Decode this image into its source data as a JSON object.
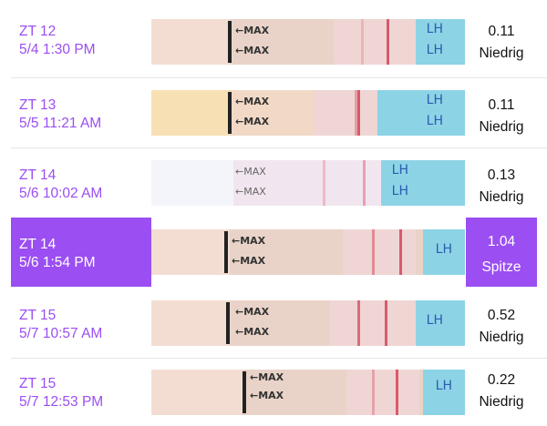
{
  "rows": [
    {
      "time": "ZT 12",
      "date": "5/4 1:30 PM",
      "value": "0.11",
      "level": "Niedrig",
      "selected": false
    },
    {
      "time": "ZT 13",
      "date": "5/5 11:21 AM",
      "value": "0.11",
      "level": "Niedrig",
      "selected": false
    },
    {
      "time": "ZT 14",
      "date": "5/6 10:02 AM",
      "value": "0.13",
      "level": "Niedrig",
      "selected": false
    },
    {
      "time": "ZT 14",
      "date": "5/6 1:54 PM",
      "value": "1.04",
      "level": "Spitze",
      "selected": true
    },
    {
      "time": "ZT 15",
      "date": "5/7 10:57 AM",
      "value": "0.52",
      "level": "Niedrig",
      "selected": false
    },
    {
      "time": "ZT 15",
      "date": "5/7 12:53 PM",
      "value": "0.22",
      "level": "Niedrig",
      "selected": false
    }
  ],
  "strip": {
    "max_label": "←MAX",
    "brand_label": "LH"
  },
  "colors": {
    "accent": "#9b4ef2",
    "text": "#111111",
    "divider": "#e6e6ea",
    "test_line": "#e07a86"
  }
}
